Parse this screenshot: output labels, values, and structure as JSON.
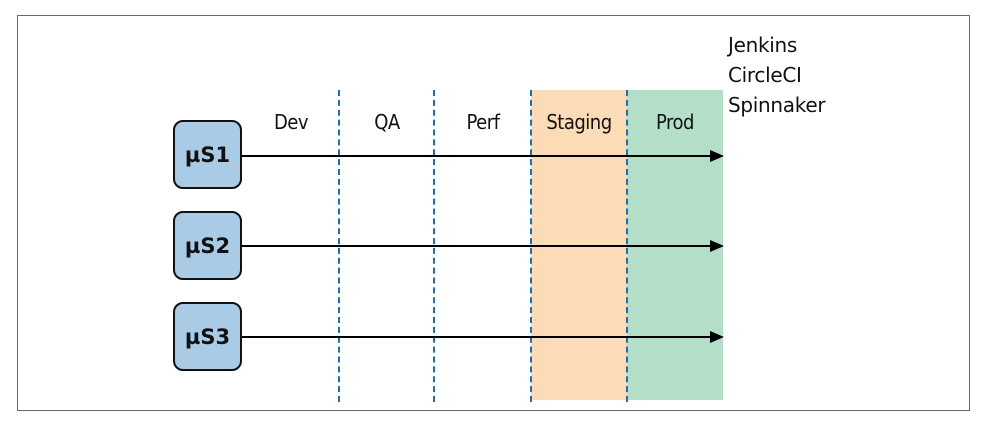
{
  "stages": [
    {
      "label": "Dev",
      "color": ""
    },
    {
      "label": "QA",
      "color": ""
    },
    {
      "label": "Perf",
      "color": ""
    },
    {
      "label": "Staging",
      "color": "#fcdcb6"
    },
    {
      "label": "Prod",
      "color": "#b3dfc8"
    }
  ],
  "services": [
    {
      "label": "µS1",
      "color": "#a9cbe6"
    },
    {
      "label": "µS2",
      "color": "#a9cbe6"
    },
    {
      "label": "µS3",
      "color": "#a9cbe6"
    }
  ],
  "tools": [
    "Jenkins",
    "CircleCI",
    "Spinnaker"
  ],
  "colors": {
    "divider": "#1f6fb0",
    "arrow": "#000000",
    "frame": "#6b6b6b"
  }
}
